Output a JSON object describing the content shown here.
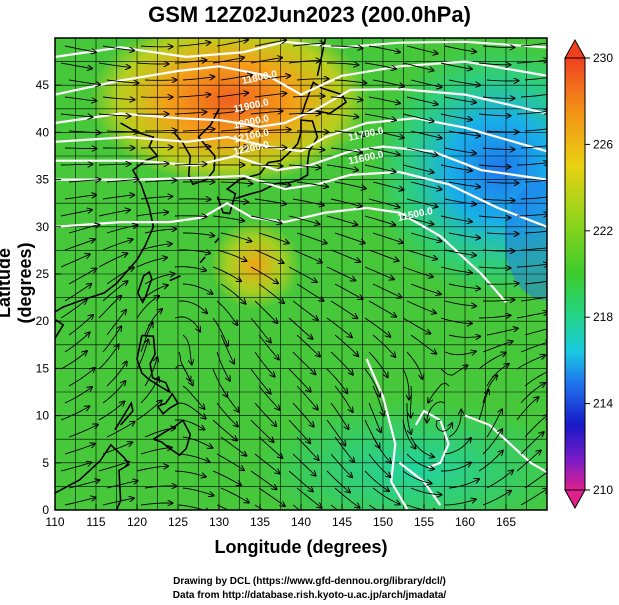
{
  "title": "GSM 12Z02Jun2023 (200.0hPa)",
  "xaxis": {
    "label": "Longitude (degrees)",
    "range": [
      110,
      170
    ],
    "ticks": [
      "110",
      "115",
      "120",
      "125",
      "130",
      "135",
      "140",
      "145",
      "150",
      "155",
      "160",
      "165"
    ],
    "tick_values": [
      110,
      115,
      120,
      125,
      130,
      135,
      140,
      145,
      150,
      155,
      160,
      165
    ]
  },
  "yaxis": {
    "label": "Latitude  (degrees)",
    "range": [
      0,
      50
    ],
    "ticks": [
      "0",
      "5",
      "10",
      "15",
      "20",
      "25",
      "30",
      "35",
      "40",
      "45"
    ],
    "tick_values": [
      0,
      5,
      10,
      15,
      20,
      25,
      30,
      35,
      40,
      45
    ]
  },
  "colorbar": {
    "ticks": [
      "230",
      "226",
      "222",
      "218",
      "214",
      "210"
    ],
    "tick_values": [
      230,
      226,
      222,
      218,
      214,
      210
    ],
    "range": [
      210,
      230
    ],
    "colors": [
      "#e0208c",
      "#7a1cc8",
      "#1818c8",
      "#1f78ee",
      "#18c8e0",
      "#22d48a",
      "#3ccc2c",
      "#8ed41c",
      "#e8d212",
      "#f4a018",
      "#f06020"
    ]
  },
  "contours": {
    "color": "#ffffff",
    "labels": [
      "11800.0",
      "11900.0",
      "12000.0",
      "12100.0",
      "12200.0",
      "11700.0",
      "11600.0",
      "11500.0"
    ]
  },
  "credits": {
    "line1": "Drawing by DCL (https://www.gfd-dennou.org/library/dcl/)",
    "line2": "Data from http://database.rish.kyoto-u.ac.jp/arch/jmadata/"
  }
}
